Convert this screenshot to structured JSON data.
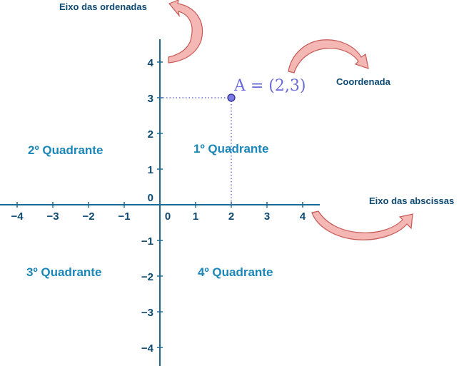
{
  "diagram": {
    "x_axis": {
      "name": "Eixo das abscissas",
      "ticks": [
        {
          "value": -4,
          "label": "−4"
        },
        {
          "value": -3,
          "label": "−3"
        },
        {
          "value": -2,
          "label": "−2"
        },
        {
          "value": -1,
          "label": "−1"
        },
        {
          "value": 0,
          "label": "0"
        },
        {
          "value": 1,
          "label": "1"
        },
        {
          "value": 2,
          "label": "2"
        },
        {
          "value": 3,
          "label": "3"
        },
        {
          "value": 4,
          "label": "4"
        }
      ]
    },
    "y_axis": {
      "name": "Eixo das ordenadas",
      "ticks": [
        {
          "value": 4,
          "label": "4"
        },
        {
          "value": 3,
          "label": "3"
        },
        {
          "value": 2,
          "label": "2"
        },
        {
          "value": 1,
          "label": "1"
        },
        {
          "value": 0,
          "label": "0"
        },
        {
          "value": -1,
          "label": "−1"
        },
        {
          "value": -2,
          "label": "−2"
        },
        {
          "value": -3,
          "label": "−3"
        },
        {
          "value": -4,
          "label": "−4"
        }
      ]
    },
    "point": {
      "label": "A = (2,3)",
      "x": 2,
      "y": 3
    },
    "annotation_coordinate": "Coordenada",
    "quadrants": {
      "q1": "1º Quadrante",
      "q2": "2º Quadrante",
      "q3": "3º Quadrante",
      "q4": "4º Quadrante"
    },
    "colors": {
      "axis": "#1b6a93",
      "label": "#0d4a73",
      "quadrant": "#1b86b8",
      "point": "#7a7ae6",
      "arrow": "#f4b7b4"
    }
  }
}
